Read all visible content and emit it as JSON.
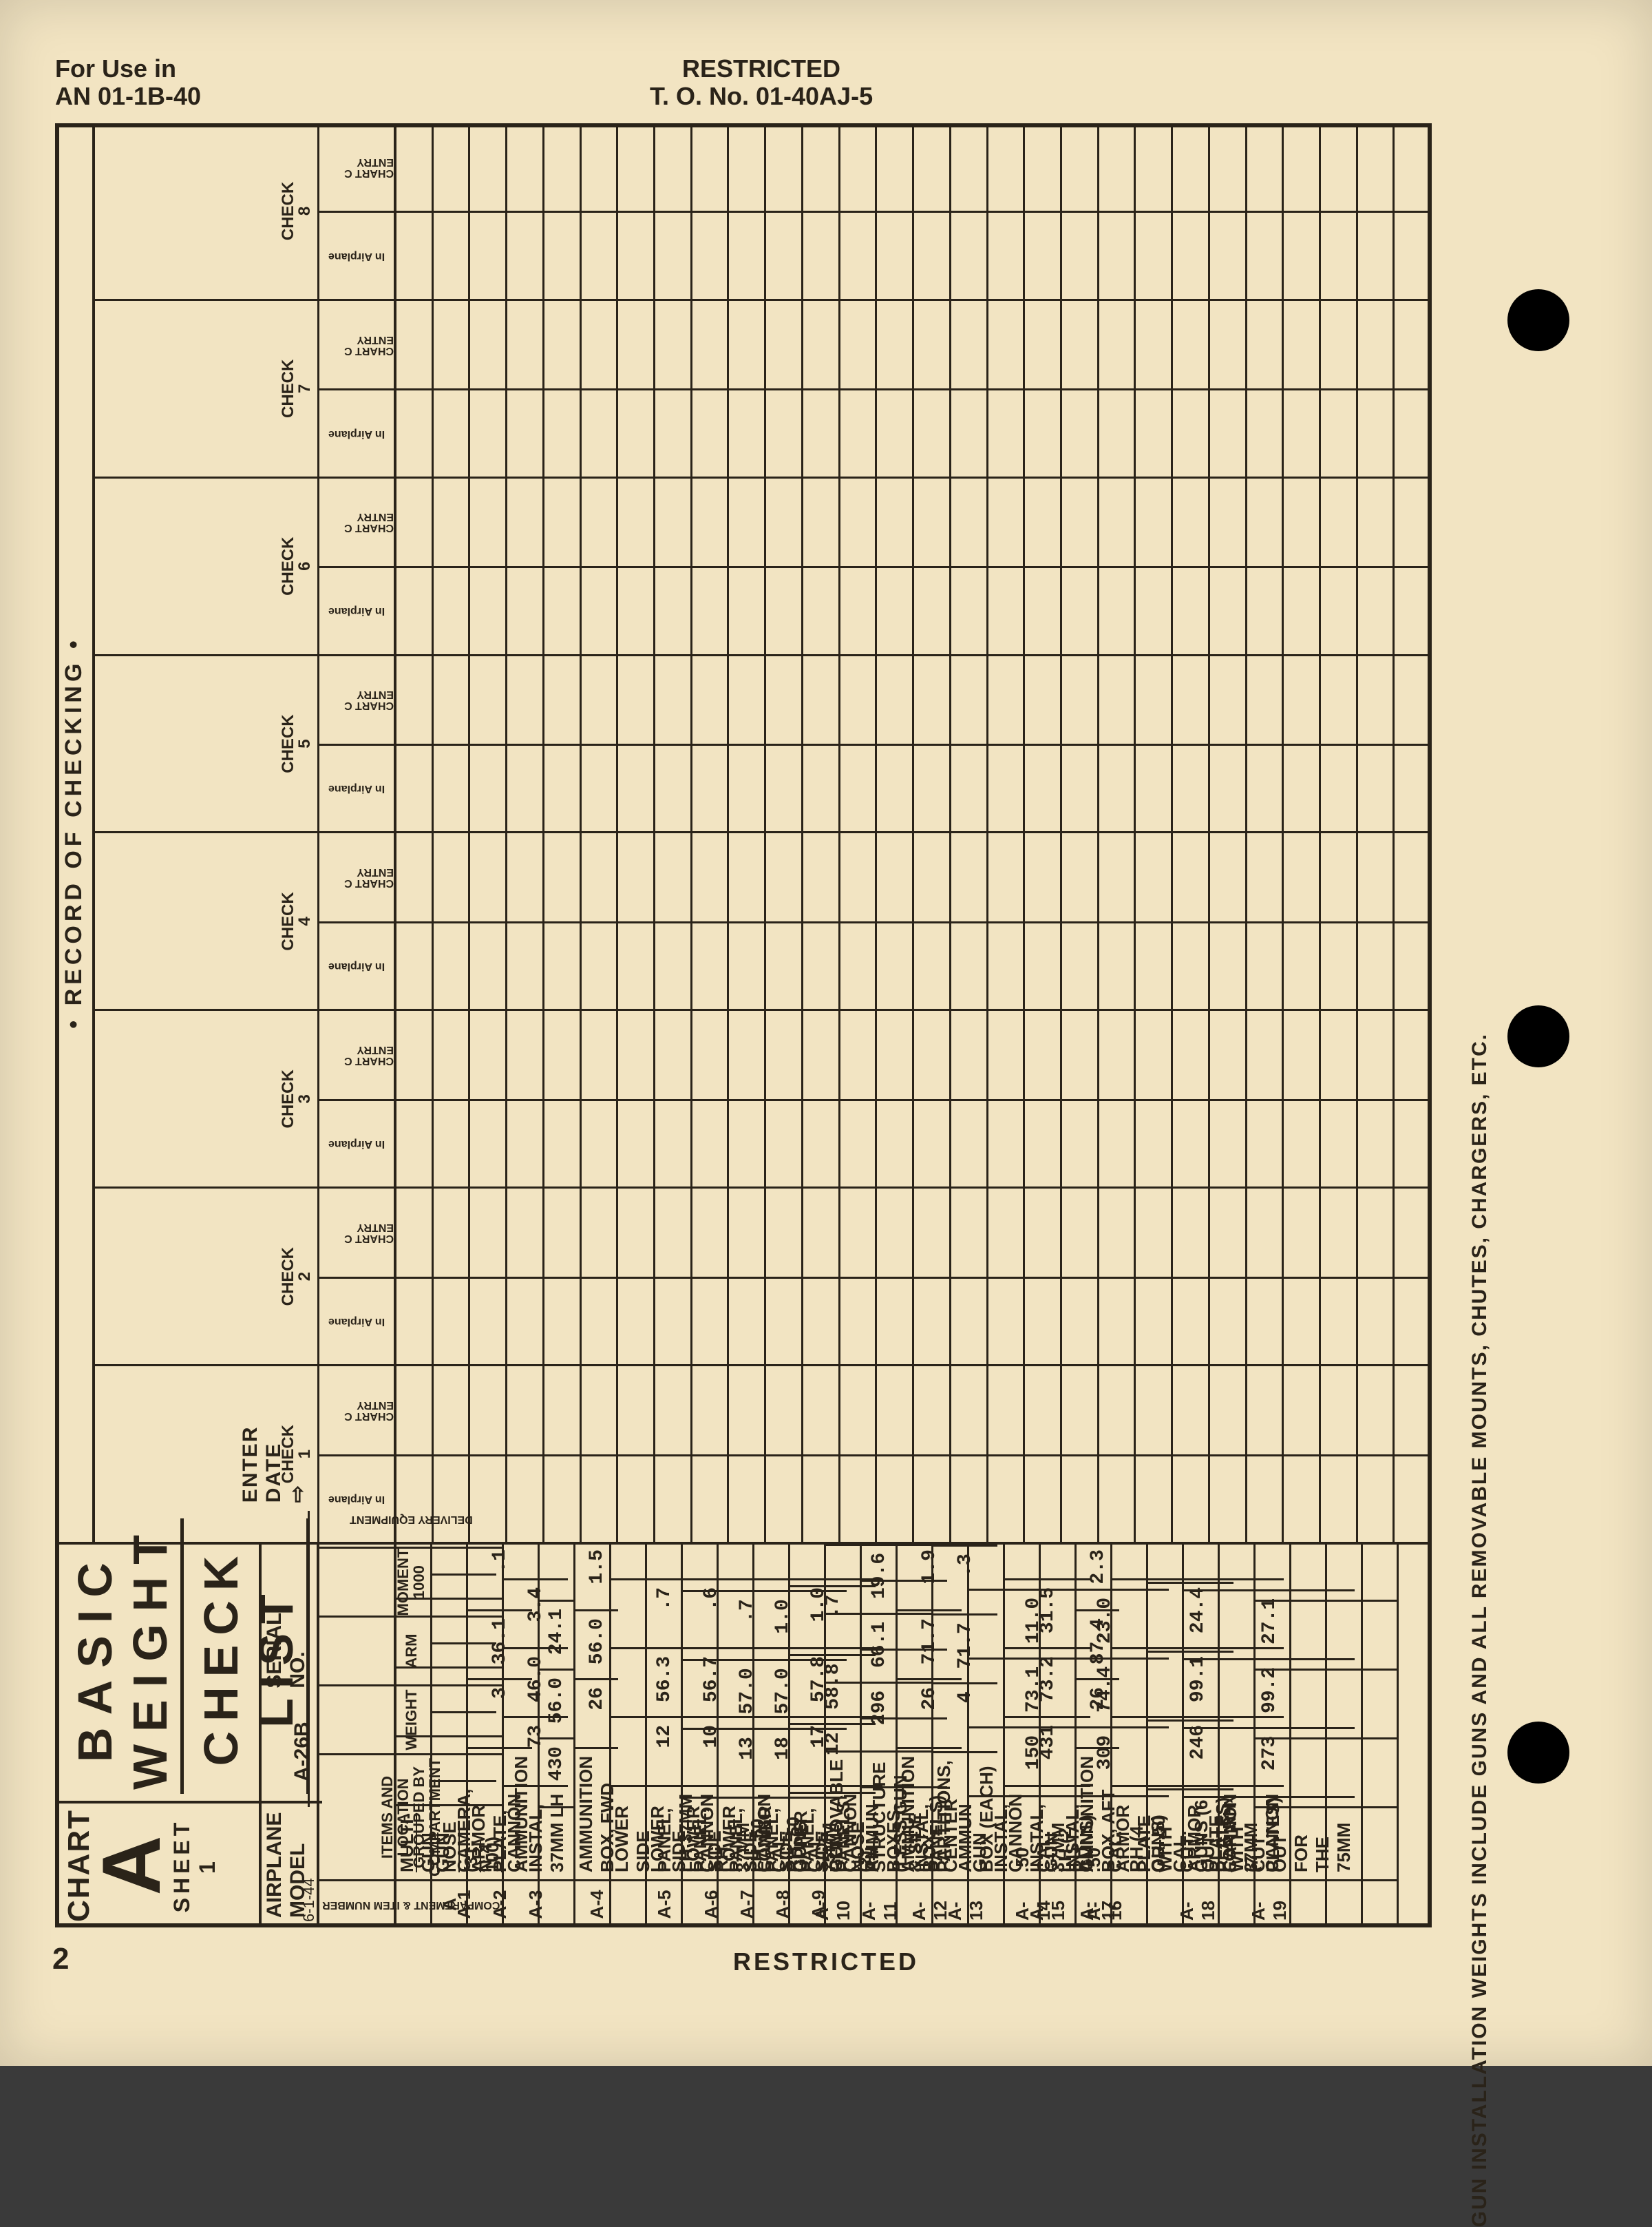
{
  "header": {
    "for_use_line1": "For Use in",
    "for_use_line2": "AN 01-1B-40",
    "restricted": "RESTRICTED",
    "to_no": "T. O. No. 01-40AJ-5"
  },
  "title_block": {
    "chart_label": "CHART",
    "chart_letter": "A",
    "sheet_label": "SHEET 1",
    "date_stamp": "6-1-44",
    "title_line1": "BASIC WEIGHT",
    "title_line2": "CHECK LIST",
    "airplane_model_label": "AIRPLANE MODEL",
    "airplane_model_value": "A-26B",
    "serial_no_label": "SERIAL NO.",
    "enter_date_label": "ENTER DATE",
    "arrow": "⇨"
  },
  "column_headers": {
    "compartment": "COMPARTMENT & ITEM NUMBER",
    "items": "ITEMS AND LOCATION\nGROUPED BY COMPARTMENT",
    "weight": "WEIGHT",
    "arm": "ARM",
    "moment": "MOMENT\n1000",
    "delivery": "DELIVERY EQUIPMENT"
  },
  "record": {
    "title": "• RECORD OF CHECKING •",
    "check_label_prefix": "CHECK",
    "sub_in_airplane": "In Airplane",
    "sub_chart_c": "CHART C ENTRY",
    "num_checks": 8
  },
  "rows": [
    {
      "idx": "A",
      "item": "MULTI-GUN NOSE (31-100)",
      "w": "",
      "a": "",
      "m": "",
      "section": true
    },
    {
      "idx": "A-1",
      "item": "GUN CAMERA, N-4",
      "w": "",
      "a": "",
      "m": ""
    },
    {
      "idx": "A-2",
      "item": "ARMOR PLATE, AMMUNITION",
      "w": "3",
      "a": "36.1",
      "m": ".1"
    },
    {
      "idx": "A-3",
      "item": "CANNON INSTAL, 37MM LH",
      "w": "73",
      "a": "46.0",
      "m": "3.4"
    },
    {
      "idx": "",
      "item": "",
      "w": "430",
      "a": "56.0",
      "m": "24.1"
    },
    {
      "idx": "A-4",
      "item": "AMMUNITION BOX, FWD",
      "w": "26",
      "a": "56.0",
      "m": "1.5"
    },
    {
      "idx": "A-5",
      "item": "LOWER SIDE PANEL, LH 37MM CANNON",
      "w": "12",
      "a": "56.3",
      "m": ".7"
    },
    {
      "idx": "A-6",
      "item": "LOWER SIDE PANEL, RH 37MM CANNON",
      "w": "10",
      "a": "56.7",
      "m": ".6"
    },
    {
      "idx": "A-7",
      "item": "LOWER SIDE PANEL, LH .50 CAL. GUNS",
      "w": "13",
      "a": "57.0",
      "m": ".7"
    },
    {
      "idx": "A-8",
      "item": "LOWER SIDE PANEL, RH .50 CAL. GUNS",
      "w": "18",
      "a": "57.0",
      "m": "1.0"
    },
    {
      "idx": "A-9",
      "item": "LOWER SIDE PANEL, 75MM CANNON RH",
      "w": "17",
      "a": "57.8",
      "m": "1.0"
    },
    {
      "idx": "A-10",
      "item": "UPPER SIDE PANELS (2)",
      "w": "12",
      "a": "58.8",
      "m": ".7"
    },
    {
      "idx": "A-11",
      "item": "REMOVABLE NOSE STRUCTURE (LESS GUN INSTAL,",
      "w": "296",
      "a": "66.1",
      "m": "19.6"
    },
    {
      "idx": "",
      "item": "AMMUN BOXES, & SIDE PANELS)",
      "w": "",
      "a": "",
      "m": ""
    },
    {
      "idx": "A-12",
      "item": "AMMUNITION BOX, CENTER",
      "w": "26",
      "a": "71.7",
      "m": "1.9"
    },
    {
      "idx": "A-13",
      "item": "PARTITIONS, AMMUN BOX (EACH)",
      "w": "4",
      "a": "71.7",
      "m": ".3"
    },
    {
      "idx": "A-14",
      "item": "GUN INSTAL, .50 CAL. LH (2 GUNS)",
      "w": "150",
      "a": "73.1",
      "m": "11.0"
    },
    {
      "idx": "A-15",
      "item": "CANNON INSTAL, 37MM RH",
      "w": "431",
      "a": "73.2",
      "m": "31.5"
    },
    {
      "idx": "A-16",
      "item": "GUN INSTAL, .50 CAL. RH (4 GUNS)",
      "w": "309",
      "a": "74.4",
      "m": "23.0"
    },
    {
      "idx": "A-17",
      "item": "AMMUNITION BOX, AFT",
      "w": "26",
      "a": "87.4",
      "m": "2.3"
    },
    {
      "idx": "A-18",
      "item": "ARMOR PLATE WITH CUT OUT FOR RH 37MM CANNON",
      "w": "246",
      "a": "99.1",
      "m": "24.4"
    },
    {
      "idx": "",
      "item": "OR .50 CAL. GUNS (6 PLATES)",
      "w": "",
      "a": "",
      "m": ""
    },
    {
      "idx": "A-19",
      "item": "ARMOR PLATE WITH CUT OUT FOR THE 75MM",
      "w": "273",
      "a": "99.2",
      "m": "27.1"
    },
    {
      "idx": "",
      "item": "CANNON (7 PLATES)",
      "w": "",
      "a": "",
      "m": ""
    },
    {
      "idx": "",
      "item": "",
      "w": "",
      "a": "",
      "m": ""
    },
    {
      "idx": "",
      "item": "",
      "w": "",
      "a": "",
      "m": ""
    },
    {
      "idx": "",
      "item": "",
      "w": "",
      "a": "",
      "m": ""
    },
    {
      "idx": "",
      "item": "",
      "w": "",
      "a": "",
      "m": ""
    }
  ],
  "footer": {
    "restricted": "RESTRICTED",
    "page": "2",
    "side_note": "GUN INSTALLATION WEIGHTS INCLUDE GUNS AND ALL REMOVABLE MOUNTS, CHUTES, CHARGERS, ETC."
  },
  "colors": {
    "paper": "#f2e4c2",
    "ink": "#2a2319"
  }
}
